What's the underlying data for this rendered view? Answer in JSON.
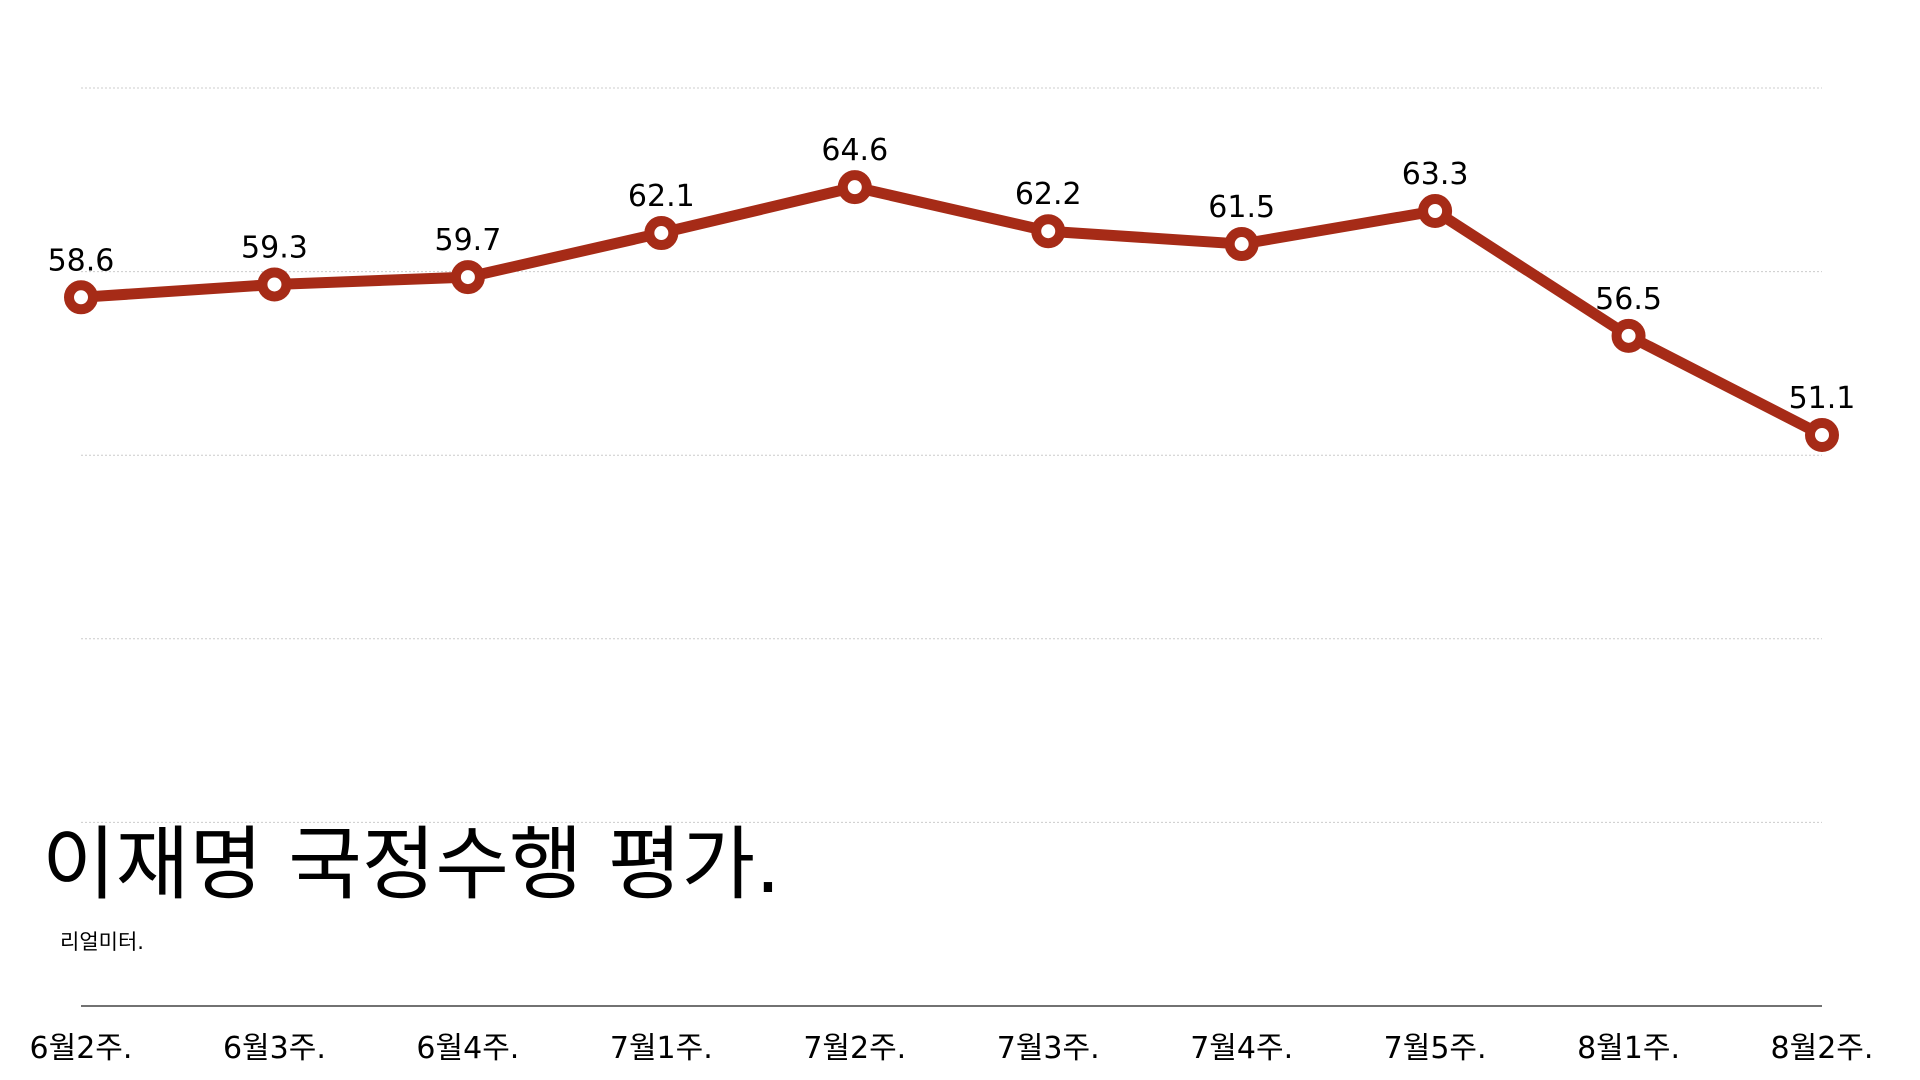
{
  "chart_data": {
    "type": "line",
    "title": "이재명 국정수행 평가.",
    "subtitle": "리얼미터.",
    "categories": [
      "6월2주.",
      "6월3주.",
      "6월4주.",
      "7월1주.",
      "7월2주.",
      "7월3주.",
      "7월4주.",
      "7월5주.",
      "8월1주.",
      "8월2주."
    ],
    "series": [
      {
        "values": [
          58.6,
          59.3,
          59.7,
          62.1,
          64.6,
          62.2,
          61.5,
          63.3,
          56.5,
          51.1
        ]
      }
    ],
    "value_labels": [
      "58.6",
      "59.3",
      "59.7",
      "62.1",
      "64.6",
      "62.2",
      "61.5",
      "63.3",
      "56.5",
      "51.1"
    ],
    "ylim": [
      20,
      70
    ],
    "grid": true,
    "colors": {
      "line": "#a62b17",
      "marker_fill": "#ffffff",
      "grid": "#cccccc",
      "axis": "#444444"
    }
  }
}
